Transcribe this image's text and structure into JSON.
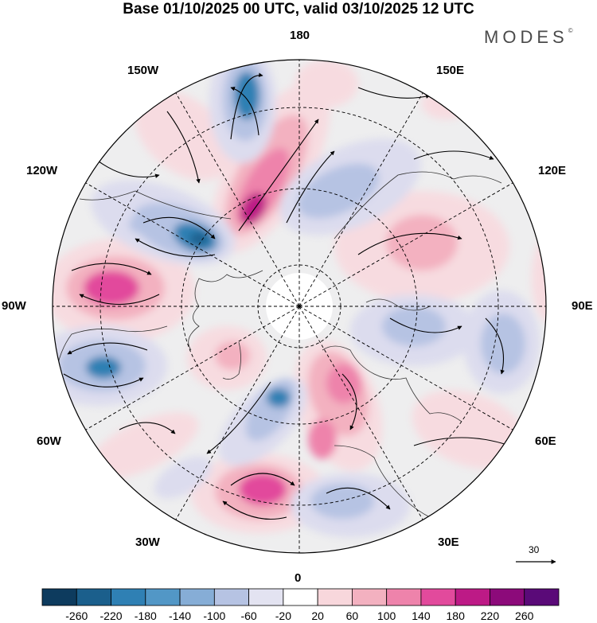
{
  "title": "Base 01/10/2025 00 UTC, valid 03/10/2025 12 UTC",
  "brand": "MODES",
  "brand_mark": "©",
  "longitude_labels": {
    "top": "180",
    "bottom": "0",
    "left": "90W",
    "right": "90E",
    "w150": "150W",
    "e150": "150E",
    "w120": "120W",
    "e120": "120E",
    "w60": "60W",
    "e60": "60E",
    "w30": "30W",
    "e30": "30E"
  },
  "wind_reference": {
    "value": "30"
  },
  "colorbar": {
    "colors": [
      "#0d3b5e",
      "#1b5f8c",
      "#2f80b4",
      "#5297c6",
      "#86add6",
      "#b6c3e3",
      "#e3e3f1",
      "#ffffff",
      "#f8d7dc",
      "#f3b1c0",
      "#ee83ab",
      "#e24a9c",
      "#bd1a86",
      "#8c0a7a",
      "#5a0a78"
    ],
    "labels": [
      "-260",
      "-220",
      "-180",
      "-140",
      "-100",
      "-60",
      "-20",
      "20",
      "60",
      "100",
      "140",
      "180",
      "220",
      "260"
    ]
  },
  "anomaly_colors": {
    "ocean_background": "#eeeeef",
    "neg_light": "#dcdcee",
    "neg_mid": "#b6c3e3",
    "neg_strong": "#86add6",
    "neg_core": "#2f80b4",
    "neg_deep": "#1b5f8c",
    "pos_light": "#f7dbe0",
    "pos_mid": "#f3b1c0",
    "pos_strong": "#ee83ab",
    "pos_core": "#e24a9c",
    "pos_deep": "#bd1a86"
  }
}
